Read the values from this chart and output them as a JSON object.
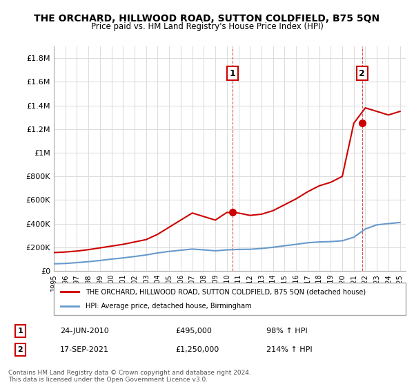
{
  "title": "THE ORCHARD, HILLWOOD ROAD, SUTTON COLDFIELD, B75 5QN",
  "subtitle": "Price paid vs. HM Land Registry's House Price Index (HPI)",
  "ylabel_ticks": [
    "£0",
    "£200K",
    "£400K",
    "£600K",
    "£800K",
    "£1M",
    "£1.2M",
    "£1.4M",
    "£1.6M",
    "£1.8M"
  ],
  "ytick_values": [
    0,
    200000,
    400000,
    600000,
    800000,
    1000000,
    1200000,
    1400000,
    1600000,
    1800000
  ],
  "ylim": [
    0,
    1900000
  ],
  "xlim_start": 1995.0,
  "xlim_end": 2025.5,
  "sale1_x": 2010.48,
  "sale1_y": 495000,
  "sale2_x": 2021.71,
  "sale2_y": 1250000,
  "legend_label_red": "THE ORCHARD, HILLWOOD ROAD, SUTTON COLDFIELD, B75 5QN (detached house)",
  "legend_label_blue": "HPI: Average price, detached house, Birmingham",
  "annotation1_label": "1",
  "annotation1_date": "24-JUN-2010",
  "annotation1_price": "£495,000",
  "annotation1_hpi": "98% ↑ HPI",
  "annotation2_label": "2",
  "annotation2_date": "17-SEP-2021",
  "annotation2_price": "£1,250,000",
  "annotation2_hpi": "214% ↑ HPI",
  "footnote": "Contains HM Land Registry data © Crown copyright and database right 2024.\nThis data is licensed under the Open Government Licence v3.0.",
  "red_color": "#cc0000",
  "blue_color": "#6699cc",
  "grid_color": "#dddddd",
  "hpi_years": [
    1995,
    1996,
    1997,
    1998,
    1999,
    2000,
    2001,
    2002,
    2003,
    2004,
    2005,
    2006,
    2007,
    2008,
    2009,
    2010,
    2011,
    2012,
    2013,
    2014,
    2015,
    2016,
    2017,
    2018,
    2019,
    2020,
    2021,
    2022,
    2023,
    2024,
    2025
  ],
  "hpi_values": [
    60000,
    63000,
    70000,
    78000,
    88000,
    100000,
    110000,
    122000,
    135000,
    152000,
    165000,
    175000,
    185000,
    178000,
    170000,
    178000,
    182000,
    183000,
    190000,
    200000,
    213000,
    225000,
    238000,
    245000,
    248000,
    255000,
    285000,
    355000,
    390000,
    400000,
    410000
  ],
  "red_years": [
    1995,
    1996,
    1997,
    1998,
    1999,
    2000,
    2001,
    2002,
    2003,
    2004,
    2005,
    2006,
    2007,
    2008,
    2009,
    2010,
    2011,
    2012,
    2013,
    2014,
    2015,
    2016,
    2017,
    2018,
    2019,
    2020,
    2021,
    2022,
    2023,
    2024,
    2025
  ],
  "red_values": [
    155000,
    160000,
    168000,
    180000,
    195000,
    210000,
    225000,
    245000,
    265000,
    310000,
    370000,
    430000,
    490000,
    460000,
    430000,
    495000,
    490000,
    470000,
    480000,
    510000,
    560000,
    610000,
    670000,
    720000,
    750000,
    800000,
    1250000,
    1380000,
    1350000,
    1320000,
    1350000
  ]
}
